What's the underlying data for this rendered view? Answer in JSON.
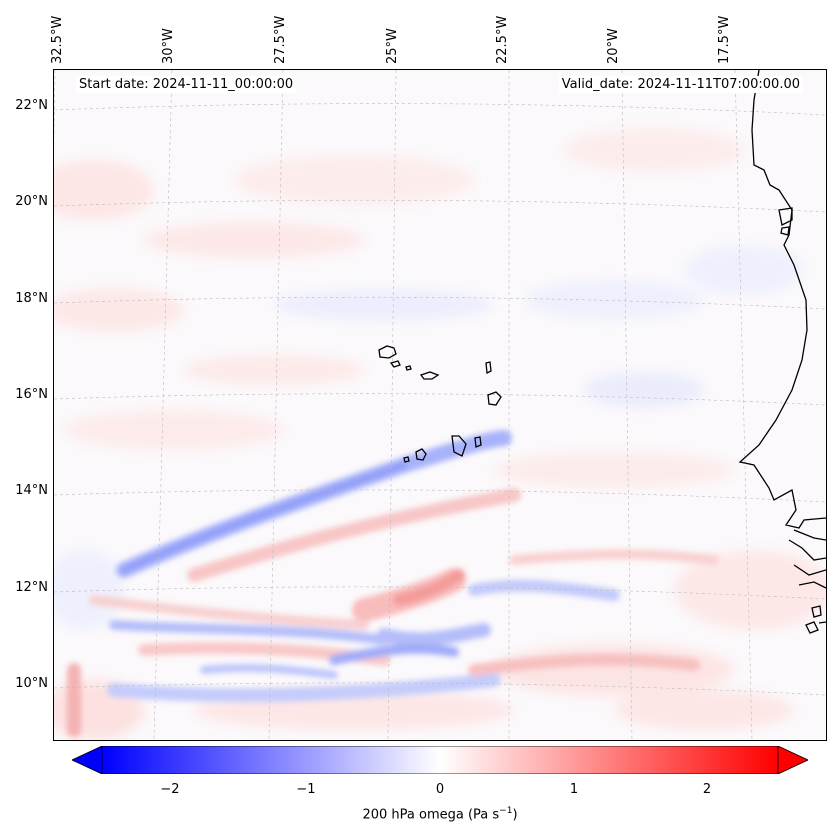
{
  "map": {
    "start_date": "Start date: 2024-11-11_00:00:00",
    "valid_date": "Valid_date: 2024-11-11T07:00:00.00",
    "longitude_labels": [
      "32.5°W",
      "30°W",
      "27.5°W",
      "25°W",
      "22.5°W",
      "20°W",
      "17.5°W"
    ],
    "latitude_labels": [
      "22°N",
      "20°N",
      "18°N",
      "16°N",
      "14°N",
      "12°N",
      "10°N"
    ],
    "features": [
      "Cape Verde islands",
      "West African coastline"
    ]
  },
  "colorbar": {
    "ticks": [
      "−2",
      "−1",
      "0",
      "1",
      "2"
    ],
    "label": "200 hPa omega (Pa s",
    "label_sup": "−1",
    "label_end": ")",
    "colors": {
      "min": "#0000ff",
      "mid": "#ffffff",
      "max": "#ff0000"
    },
    "range": [
      -2.6,
      2.6
    ]
  }
}
